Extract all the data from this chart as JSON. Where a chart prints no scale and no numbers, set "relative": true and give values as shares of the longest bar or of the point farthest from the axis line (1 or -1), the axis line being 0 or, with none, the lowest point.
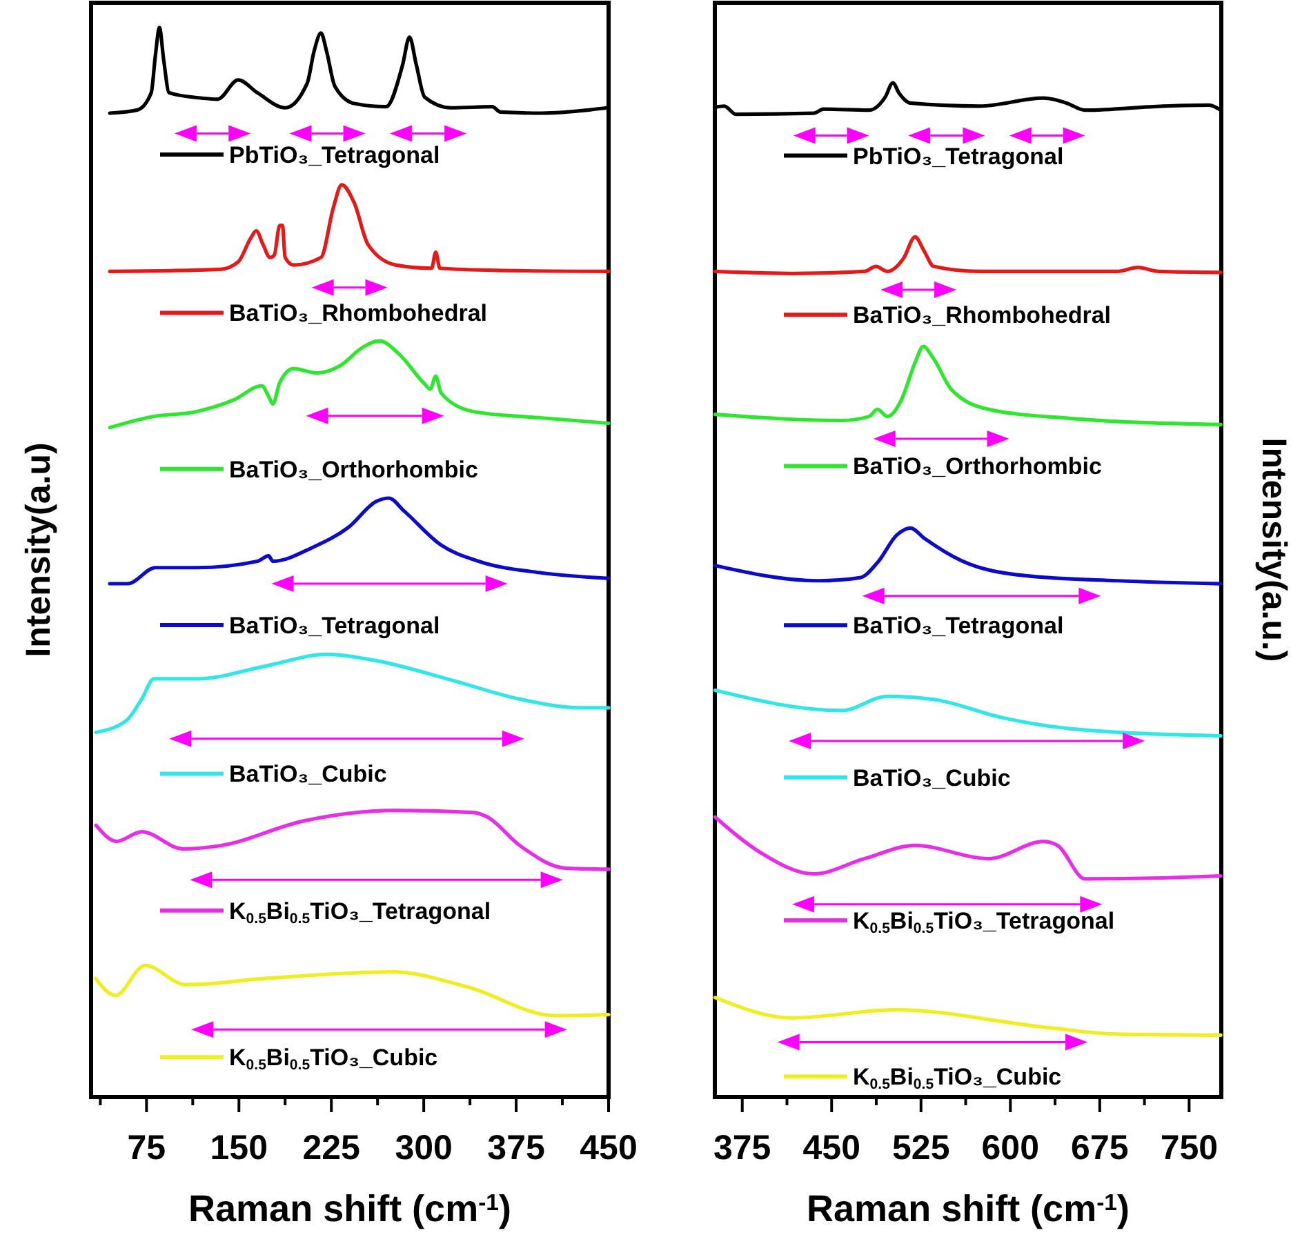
{
  "chart_data": [
    {
      "type": "line",
      "relative": true,
      "legend": "left",
      "tick_labels": "x",
      "xlabel": "Raman shift (cm$^{-1}$)",
      "ylabel": "Intensity(a.u)",
      "xlim": [
        30,
        450
      ],
      "xticks": [
        {
          "value": 37.5,
          "label": null
        },
        75,
        {
          "value": 112.5,
          "label": null
        },
        150,
        {
          "value": 187.5,
          "label": null
        },
        225,
        {
          "value": 262.5,
          "label": null
        },
        300,
        {
          "value": 337.5,
          "label": null
        },
        375,
        {
          "value": 412.5,
          "label": null
        },
        450
      ],
      "series": [
        {
          "name": "PbTiO₃_Tetragonal",
          "color": "#000000",
          "x": [
            45.2,
            67.6,
            78.8,
            82.2,
            85.5,
            88.9,
            93.4,
            120.3,
            132.6,
            149.4,
            165.1,
            187.5,
            205.4,
            211,
            216.6,
            221.1,
            227.9,
            243.6,
            269.4,
            282.8,
            288.4,
            294,
            300.7,
            322,
            355.6,
            362.3,
            396,
            434.2,
            448.8
          ],
          "values": [
            0.92,
            0.923,
            0.939,
            0.974,
            1,
            0.97,
            0.939,
            0.934,
            0.933,
            0.951,
            0.939,
            0.925,
            0.948,
            0.978,
            0.995,
            0.978,
            0.945,
            0.929,
            0.926,
            0.965,
            0.991,
            0.965,
            0.935,
            0.925,
            0.926,
            0.921,
            0.92,
            0.923,
            0.925
          ]
        },
        {
          "name": "BaTiO₃_Rhombohedral",
          "color": "#e41a1a",
          "x": [
            45.2,
            134.9,
            149.4,
            159.5,
            164,
            169.6,
            175.2,
            178.6,
            183.1,
            185.3,
            187.5,
            194.3,
            216.6,
            226.7,
            233.4,
            243.6,
            254.8,
            277.2,
            306.4,
            309.7,
            313.1,
            359,
            450
          ],
          "values": [
            0.772,
            0.774,
            0.781,
            0.803,
            0.81,
            0.797,
            0.785,
            0.787,
            0.815,
            0.815,
            0.785,
            0.778,
            0.785,
            0.832,
            0.853,
            0.836,
            0.797,
            0.778,
            0.775,
            0.79,
            0.775,
            0.773,
            0.772
          ]
        },
        {
          "name": "BaTiO₃_Orthorhombic",
          "color": "#2ee62e",
          "x": [
            45.2,
            78.8,
            115.8,
            146.1,
            168.5,
            174.1,
            177.5,
            183.1,
            194.3,
            213.4,
            232.4,
            250.4,
            263.8,
            280.6,
            299.7,
            305.3,
            309.7,
            314.2,
            340,
            396,
            450
          ],
          "values": [
            0.626,
            0.636,
            0.641,
            0.652,
            0.665,
            0.655,
            0.648,
            0.668,
            0.681,
            0.677,
            0.684,
            0.701,
            0.707,
            0.694,
            0.668,
            0.662,
            0.674,
            0.658,
            0.641,
            0.635,
            0.63
          ]
        },
        {
          "name": "BaTiO₃_Tetragonal",
          "color": "#0b0bc8",
          "x": [
            45.2,
            59.8,
            82.2,
            115.8,
            165.1,
            174.1,
            177.5,
            210,
            239.2,
            261.6,
            271.7,
            284,
            314.2,
            344.5,
            396,
            450
          ],
          "values": [
            0.48,
            0.48,
            0.495,
            0.495,
            0.501,
            0.506,
            0.501,
            0.514,
            0.533,
            0.557,
            0.56,
            0.548,
            0.516,
            0.501,
            0.49,
            0.485
          ]
        },
        {
          "name": "BaTiO₃_Cubic",
          "color": "#33e6e6",
          "x": [
            34,
            58.6,
            71,
            81,
            115.8,
            171.8,
            221.1,
            261.6,
            322,
            378.1,
            426.3,
            450
          ],
          "values": [
            0.341,
            0.352,
            0.372,
            0.391,
            0.391,
            0.403,
            0.414,
            0.408,
            0.39,
            0.372,
            0.364,
            0.364
          ]
        },
        {
          "name": "K$_{0.5}$Bi$_{0.5}$TiO₃_Tetragonal",
          "color": "#e62ee6",
          "x": [
            34,
            50.8,
            71,
            104.6,
            134.9,
            202.1,
            277.2,
            340,
            351.2,
            378.1,
            415.1,
            450
          ],
          "values": [
            0.254,
            0.239,
            0.248,
            0.232,
            0.235,
            0.258,
            0.268,
            0.266,
            0.262,
            0.235,
            0.214,
            0.213
          ]
        },
        {
          "name": "K$_{0.5}$Bi$_{0.5}$TiO₃_Cubic",
          "color": "#eeee22",
          "x": [
            33.5,
            49.8,
            73.8,
            106.8,
            172.9,
            275,
            335,
            407.1,
            450
          ],
          "values": [
            0.111,
            0.095,
            0.123,
            0.105,
            0.111,
            0.117,
            0.103,
            0.076,
            0.077
          ]
        }
      ]
    },
    {
      "type": "line",
      "relative": true,
      "legend": "left",
      "tick_labels": "x",
      "xlabel": "Raman shift (cm$^{-1}$)",
      "y2label": "Intensity(a.u.)",
      "xlim": [
        352,
        777
      ],
      "xticks": [
        375,
        {
          "value": 412.5,
          "label": null
        },
        450,
        {
          "value": 487.5,
          "label": null
        },
        525,
        {
          "value": 562.5,
          "label": null
        },
        600,
        {
          "value": 637.5,
          "label": null
        },
        675,
        {
          "value": 712.5,
          "label": null
        },
        750
      ],
      "series": [
        {
          "name": "PbTiO₃_Tetragonal",
          "color": "#000000",
          "x": [
            352.2,
            360,
            369.6,
            435.2,
            443,
            481.4,
            495,
            501.4,
            506.5,
            516.2,
            574,
            628,
            647.2,
            662.7,
            728.2,
            766.8,
            776.5
          ],
          "values": [
            0.976,
            0.977,
            0.969,
            0.97,
            0.974,
            0.973,
            0.986,
            1,
            0.99,
            0.98,
            0.977,
            0.985,
            0.98,
            0.973,
            0.977,
            0.978,
            0.973
          ]
        },
        {
          "name": "BaTiO₃_Rhombohedral",
          "color": "#e41a1a",
          "x": [
            352.2,
            419.8,
            477.6,
            487.2,
            496.8,
            510.4,
            520,
            527.7,
            535.5,
            574,
            689.7,
            707,
            724.4,
            776.5
          ],
          "values": [
            0.814,
            0.812,
            0.814,
            0.819,
            0.814,
            0.827,
            0.848,
            0.834,
            0.819,
            0.814,
            0.814,
            0.818,
            0.814,
            0.813
          ]
        },
        {
          "name": "BaTiO₃_Orthorhombic",
          "color": "#2ee62e",
          "x": [
            352.2,
            458.3,
            481.4,
            488.4,
            496.8,
            508.4,
            520,
            526.9,
            535.5,
            550.9,
            581.8,
            651.2,
            776.5
          ],
          "values": [
            0.673,
            0.667,
            0.671,
            0.678,
            0.671,
            0.687,
            0.724,
            0.74,
            0.728,
            0.697,
            0.678,
            0.669,
            0.663
          ]
        },
        {
          "name": "BaTiO₃_Tetragonal",
          "color": "#0b0bc8",
          "x": [
            352.2,
            439,
            473.7,
            489.2,
            504.6,
            516.2,
            527.7,
            558.6,
            612.5,
            689.7,
            776.5
          ],
          "values": [
            0.524,
            0.509,
            0.512,
            0.528,
            0.554,
            0.561,
            0.551,
            0.529,
            0.514,
            0.509,
            0.506
          ]
        },
        {
          "name": "BaTiO₃_Cubic",
          "color": "#33e6e6",
          "x": [
            352.2,
            458.3,
            496.8,
            535.5,
            593.3,
            651.2,
            776.5
          ],
          "values": [
            0.401,
            0.381,
            0.395,
            0.392,
            0.374,
            0.363,
            0.356
          ]
        },
        {
          "name": "K$_{0.5}$Bi$_{0.5}$TiO₃_Tetragonal",
          "color": "#e62ee6",
          "x": [
            352.2,
            388.9,
            435.2,
            477.6,
            520,
            581.8,
            628,
            639.6,
            662.7,
            728.2,
            776.5
          ],
          "values": [
            0.276,
            0.242,
            0.22,
            0.235,
            0.248,
            0.235,
            0.252,
            0.248,
            0.215,
            0.216,
            0.218
          ]
        },
        {
          "name": "K$_{0.5}$Bi$_{0.5}$TiO₃_Cubic",
          "color": "#eeee22",
          "x": [
            352.2,
            416.9,
            503.7,
            627.6,
            689.6,
            776.5
          ],
          "values": [
            0.098,
            0.078,
            0.086,
            0.069,
            0.062,
            0.061
          ]
        }
      ]
    }
  ]
}
